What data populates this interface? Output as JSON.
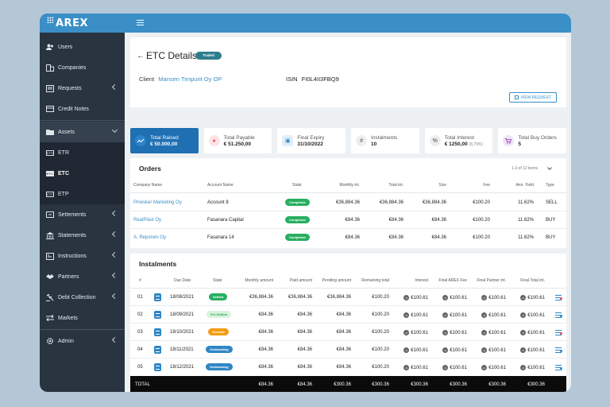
{
  "app": {
    "logo": "AREX"
  },
  "sidebar": {
    "items": [
      {
        "label": "Users",
        "icon": "users-icon"
      },
      {
        "label": "Companies",
        "icon": "building-icon"
      },
      {
        "label": "Requests",
        "icon": "requests-icon"
      },
      {
        "label": "Credit Notes",
        "icon": "card-icon"
      },
      {
        "label": "Assets",
        "icon": "folder-icon"
      }
    ],
    "assets_sub": [
      {
        "badge": "ETR",
        "label": "ETR"
      },
      {
        "badge": "ETC",
        "label": "ETC"
      },
      {
        "badge": "ETP",
        "label": "ETP"
      }
    ],
    "items2": [
      {
        "label": "Settements",
        "icon": "settlements-icon"
      },
      {
        "label": "Statements",
        "icon": "bank-icon"
      },
      {
        "label": "Instructions",
        "icon": "instructions-icon"
      },
      {
        "label": "Partners",
        "icon": "handshake-icon"
      },
      {
        "label": "Debt Collection",
        "icon": "gavel-icon"
      },
      {
        "label": "Markets",
        "icon": "transfer-icon"
      }
    ],
    "admin": {
      "label": "Admin",
      "icon": "gear-icon"
    }
  },
  "header": {
    "title": "ETC Details",
    "badge": "Traded",
    "client_label": "Client",
    "client_name": "Mansen Timpurit Oy OP",
    "isin_label": "ISIN",
    "isin_value": "FI0L4II3FBQ9",
    "view_request": "VIEW REQUEST"
  },
  "stats": [
    {
      "label": "Total Raised",
      "value": "€ 50.000,00",
      "icon": "chart-icon",
      "color": "#1f6fb2"
    },
    {
      "label": "Total Payable",
      "value": "€ 51.250,00",
      "icon": "payable-icon",
      "color": "#e86a6a"
    },
    {
      "label": "Final Expiry",
      "value": "31/10/2022",
      "icon": "calendar-icon",
      "color": "#3a8fc7"
    },
    {
      "label": "Instalments",
      "value": "10",
      "icon": "hash-icon",
      "color": "#666666"
    },
    {
      "label": "Total Interest",
      "value": "€ 1250,00",
      "sub": "(8,79%)",
      "icon": "percent-icon",
      "color": "#555555"
    },
    {
      "label": "Total Buy Orders",
      "value": "5",
      "icon": "cart-icon",
      "color": "#9b59b6"
    }
  ],
  "orders": {
    "title": "Orders",
    "pager": "1-3 of 12 items",
    "columns": [
      "Company Name",
      "Account Name",
      "State",
      "Monthly int.",
      "Total int.",
      "Size",
      "Fee",
      "Ann. Yield",
      "Type"
    ],
    "rows": [
      {
        "company": "Pinesker Marketing Oy",
        "account": "Account 8",
        "state": "Completed",
        "monthly": "€36,884.36",
        "total": "€36,884.36",
        "size": "€36,884.36",
        "fee": "€100.20",
        "yield": "11.62%",
        "type": "SELL"
      },
      {
        "company": "RealPlast Oy",
        "account": "Fasanara Capital",
        "state": "Completed",
        "monthly": "€84.36",
        "total": "€84.36",
        "size": "€84.36",
        "fee": "€100.20",
        "yield": "11.62%",
        "type": "BUY"
      },
      {
        "company": "A. Reponen Oy",
        "account": "Fasanara 14",
        "state": "Completed",
        "monthly": "€84.36",
        "total": "€84.36",
        "size": "€84.36",
        "fee": "€100.20",
        "yield": "11.62%",
        "type": "BUY"
      }
    ]
  },
  "instalments": {
    "title": "Instalments",
    "columns": [
      "#",
      "Due Date",
      "State",
      "Monthly amount",
      "Paid amount",
      "Pending amount",
      "Remaining total",
      "Interest",
      "Final AREX Fee",
      "Final Partner int.",
      "Final Total int."
    ],
    "rows": [
      {
        "num": "01",
        "date": "18/08/2021",
        "state": "Settled",
        "state_color": "#27ae60",
        "monthly": "€36,884.36",
        "paid": "€36,884.36",
        "pending": "€36,884.36",
        "remaining": "€100.20",
        "interest": "€100.61",
        "arex": "€100.61",
        "partner": "€100.61",
        "total": "€100.61",
        "dot": "#e05050"
      },
      {
        "num": "02",
        "date": "18/09/2021",
        "state": "Pre-Settled",
        "state_color": "#d9f2dd",
        "monthly": "€84.36",
        "paid": "€84.36",
        "pending": "€84.36",
        "remaining": "€100.20",
        "interest": "€100.61",
        "arex": "€100.61",
        "partner": "€100.61",
        "total": "€100.61",
        "dot": "#2f86c4"
      },
      {
        "num": "03",
        "date": "18/10/2021",
        "state": "Overdue",
        "state_color": "#f39c12",
        "monthly": "€84.36",
        "paid": "€84.36",
        "pending": "€84.36",
        "remaining": "€100.20",
        "interest": "€100.61",
        "arex": "€100.61",
        "partner": "€100.61",
        "total": "€100.61",
        "dot": "#e05050"
      },
      {
        "num": "04",
        "date": "18/11/2021",
        "state": "Outstanding",
        "state_color": "#2f86c4",
        "monthly": "€84.36",
        "paid": "€84.36",
        "pending": "€84.36",
        "remaining": "€100.20",
        "interest": "€100.61",
        "arex": "€100.61",
        "partner": "€100.61",
        "total": "€100.61",
        "dot": "#2f86c4"
      },
      {
        "num": "05",
        "date": "18/12/2021",
        "state": "Outstanding",
        "state_color": "#2f86c4",
        "monthly": "€84.36",
        "paid": "€84.36",
        "pending": "€84.36",
        "remaining": "€100.20",
        "interest": "€100.61",
        "arex": "€100.61",
        "partner": "€100.61",
        "total": "€100.61",
        "dot": "#2f86c4"
      }
    ],
    "total": {
      "label": "TOTAL",
      "monthly": "€84.36",
      "paid": "€84.36",
      "pending": "€300.36",
      "remaining": "€300.36",
      "interest": "€300.36",
      "arex": "€300.36",
      "partner": "€300.36",
      "total": "€300.36"
    }
  }
}
